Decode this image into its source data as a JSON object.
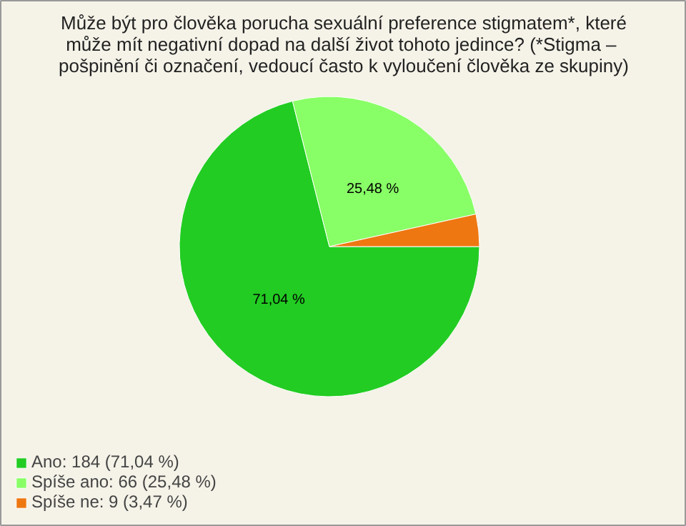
{
  "chart_data": {
    "type": "pie",
    "title": "Může být pro člověka porucha sexuální preference stigmatem*, které\nmůže mít negativní dopad na další život tohoto jedince?  (*Stigma –\npošpinění či označení, vedoucí často k vyloučení člověka ze skupiny)",
    "categories": [
      "Ano: 184 (71,04 %)",
      "Spíše ano: 66 (25,48 %)",
      "Spíše ne: 9 (3,47 %)"
    ],
    "values": [
      71.04,
      25.48,
      3.47
    ],
    "colors": [
      "#22cc22",
      "#88ff66",
      "#ee7711"
    ],
    "value_labels": [
      "71,04 %",
      "25,48 %",
      null
    ],
    "legend": "bottom left"
  }
}
